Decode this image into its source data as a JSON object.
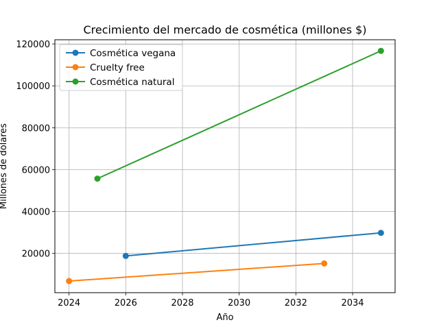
{
  "chart_data": {
    "type": "line",
    "title": "Crecimiento del mercado de cosmética (millones $)",
    "xlabel": "Año",
    "ylabel": "Millones de dólares",
    "xlim": [
      2023.5,
      2035.5
    ],
    "ylim": [
      1250,
      122000
    ],
    "xticks": [
      2024,
      2026,
      2028,
      2030,
      2032,
      2034
    ],
    "yticks": [
      20000,
      40000,
      60000,
      80000,
      100000,
      120000
    ],
    "grid": true,
    "legend_position": "top-left",
    "series": [
      {
        "name": "Cosmética vegana",
        "color": "#1f77b4",
        "x": [
          2026,
          2035
        ],
        "y": [
          18800,
          29800
        ]
      },
      {
        "name": "Cruelty free",
        "color": "#ff7f0e",
        "x": [
          2024,
          2033
        ],
        "y": [
          6800,
          15200
        ]
      },
      {
        "name": "Cosmética natural",
        "color": "#2ca02c",
        "x": [
          2025,
          2035
        ],
        "y": [
          55700,
          116700
        ]
      }
    ]
  }
}
